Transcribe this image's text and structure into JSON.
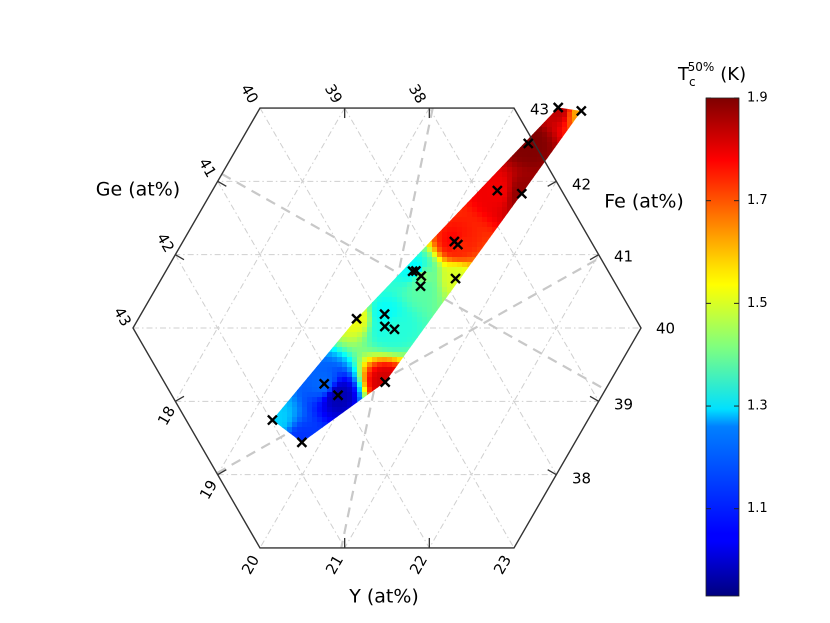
{
  "chart_data": {
    "type": "heatmap",
    "subtype": "ternary-hexagonal-composition-map",
    "axes": {
      "ge": {
        "label": "Ge (at%)",
        "ticks": [
          "40",
          "41",
          "42",
          "43"
        ]
      },
      "fe": {
        "label": "Fe (at%)",
        "ticks": [
          "43",
          "42",
          "41",
          "40",
          "39",
          "38"
        ]
      },
      "y": {
        "label": "Y (at%)",
        "ticks": [
          "18",
          "19",
          "20",
          "21",
          "22",
          "23"
        ]
      }
    },
    "top_ticks": [
      "39",
      "38"
    ],
    "colorbar": {
      "title_main": "T",
      "title_sub": "c",
      "title_sup": "50%",
      "title_unit": "(K)",
      "ticks": [
        "1.9",
        "1.7",
        "1.5",
        "1.3",
        "1.1"
      ],
      "tick_values": [
        1.9,
        1.7,
        1.5,
        1.3,
        1.1
      ],
      "range": [
        0.93,
        1.9
      ],
      "colormap": "jet"
    },
    "samples": [
      {
        "ge": 40.47,
        "fe": 42.23,
        "y": 17.31,
        "tc": 1.84
      },
      {
        "ge": 42.09,
        "fe": 40.45,
        "y": 17.46,
        "tc": 1.52
      },
      {
        "ge": 40.62,
        "fe": 41.91,
        "y": 17.47,
        "tc": 1.9
      },
      {
        "ge": 40.58,
        "fe": 41.46,
        "y": 17.96,
        "tc": 1.79
      },
      {
        "ge": 41.42,
        "fe": 40.81,
        "y": 17.77,
        "tc": 1.3
      },
      {
        "ge": 41.33,
        "fe": 40.8,
        "y": 17.87,
        "tc": 1.28
      },
      {
        "ge": 40.81,
        "fe": 41.01,
        "y": 18.18,
        "tc": 1.78
      },
      {
        "ge": 40.65,
        "fe": 40.96,
        "y": 18.39,
        "tc": 1.74
      },
      {
        "ge": 41.08,
        "fe": 40.72,
        "y": 18.2,
        "tc": 1.42
      },
      {
        "ge": 40.9,
        "fe": 40.6,
        "y": 18.5,
        "tc": 1.38
      },
      {
        "ge": 41.38,
        "fe": 40.4,
        "y": 18.22,
        "tc": 1.3
      },
      {
        "ge": 41.13,
        "fe": 40.25,
        "y": 18.62,
        "tc": 1.32
      },
      {
        "ge": 40.8,
        "fe": 40.18,
        "y": 19.02,
        "tc": 1.33
      },
      {
        "ge": 39.74,
        "fe": 42.1,
        "y": 18.16,
        "tc": 1.62
      },
      {
        "ge": 39.82,
        "fe": 41.33,
        "y": 18.85,
        "tc": 1.88
      },
      {
        "ge": 40.05,
        "fe": 40.56,
        "y": 19.39,
        "tc": 1.5
      },
      {
        "ge": 40.03,
        "fe": 39.58,
        "y": 20.39,
        "tc": 1.82
      },
      {
        "ge": 41.74,
        "fe": 39.79,
        "y": 18.47,
        "tc": 1.15
      },
      {
        "ge": 41.12,
        "fe": 39.6,
        "y": 19.28,
        "tc": 0.98
      },
      {
        "ge": 42.51,
        "fe": 39.55,
        "y": 17.94,
        "tc": 1.25
      },
      {
        "ge": 41.23,
        "fe": 39.17,
        "y": 19.6,
        "tc": 1.1
      }
    ]
  }
}
